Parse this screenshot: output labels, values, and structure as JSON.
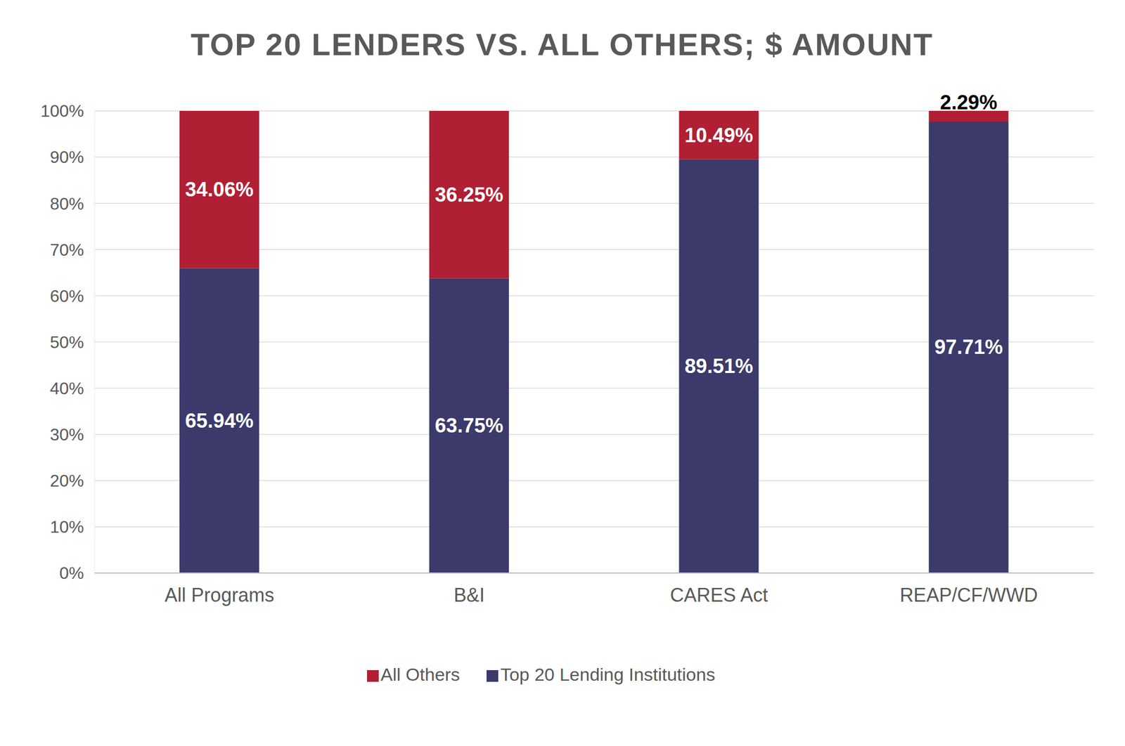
{
  "chart_data": {
    "type": "bar",
    "title": "TOP 20 LENDERS VS. ALL OTHERS; $ AMOUNT",
    "categories": [
      "All Programs",
      "B&I",
      "CARES Act",
      "REAP/CF/WWD"
    ],
    "series": [
      {
        "name": "Top 20 Lending Institutions",
        "color": "#3b3a6b",
        "values": [
          65.94,
          63.75,
          89.51,
          97.71
        ],
        "value_labels": [
          "65.94%",
          "63.75%",
          "89.51%",
          "97.71%"
        ]
      },
      {
        "name": "All Others",
        "color": "#b01f33",
        "values": [
          34.06,
          36.25,
          10.49,
          2.29
        ],
        "value_labels": [
          "34.06%",
          "36.25%",
          "10.49%",
          "2.29%"
        ]
      }
    ],
    "ylim": [
      0,
      100
    ],
    "yticks": [
      {
        "value": 0,
        "label": "0%"
      },
      {
        "value": 10,
        "label": "10%"
      },
      {
        "value": 20,
        "label": "20%"
      },
      {
        "value": 30,
        "label": "30%"
      },
      {
        "value": 40,
        "label": "40%"
      },
      {
        "value": 50,
        "label": "50%"
      },
      {
        "value": 60,
        "label": "60%"
      },
      {
        "value": 70,
        "label": "70%"
      },
      {
        "value": 80,
        "label": "80%"
      },
      {
        "value": 90,
        "label": "90%"
      },
      {
        "value": 100,
        "label": "100%"
      }
    ],
    "grid": true,
    "stacked": true,
    "data_labels": true,
    "legend": "bottom"
  }
}
